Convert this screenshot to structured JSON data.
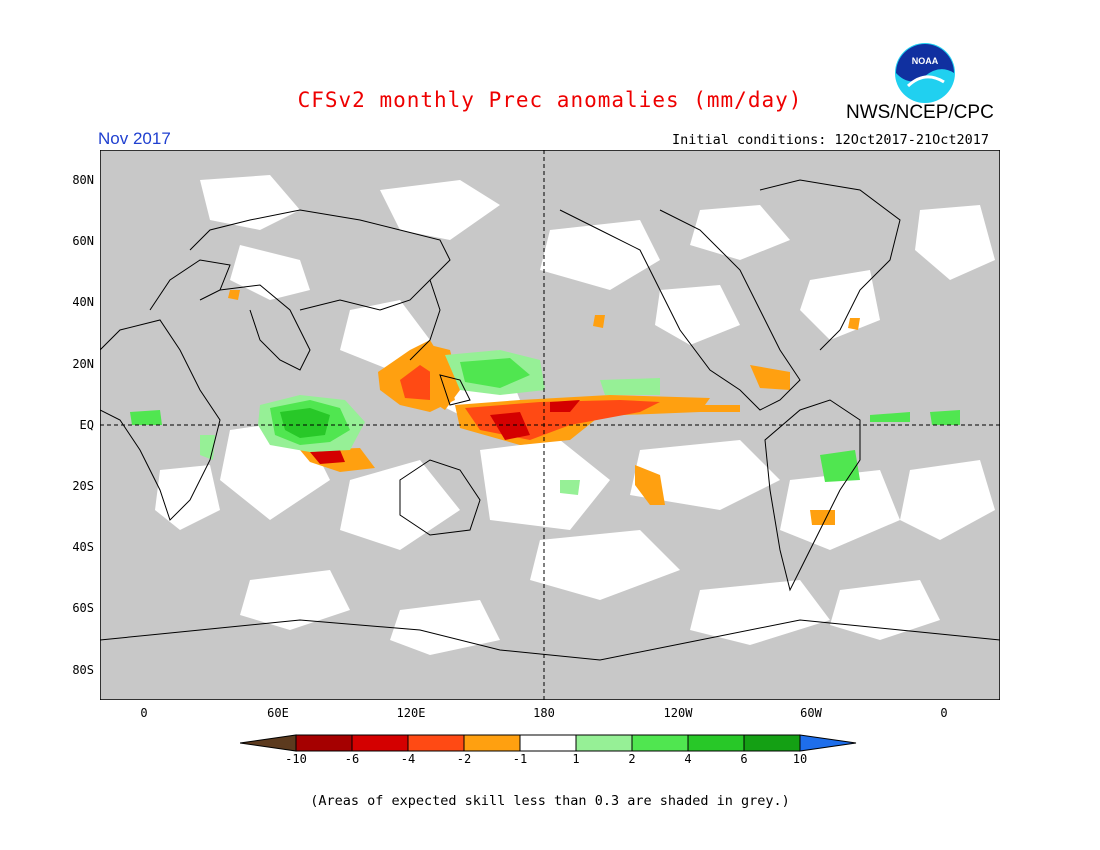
{
  "title": "CFSv2 monthly Prec anomalies (mm/day)",
  "agency": "NWS/NCEP/CPC",
  "logo_text": "NOAA",
  "valid_month": "Nov 2017",
  "initial_conditions": "Initial conditions: 12Oct2017-21Oct2017",
  "lat_labels": [
    "80N",
    "60N",
    "40N",
    "20N",
    "EQ",
    "20S",
    "40S",
    "60S",
    "80S"
  ],
  "lon_labels": [
    "0",
    "60E",
    "120E",
    "180",
    "120W",
    "60W",
    "0"
  ],
  "colorbar": {
    "labels": [
      "-10",
      "-6",
      "-4",
      "-2",
      "-1",
      "1",
      "2",
      "4",
      "6",
      "10"
    ],
    "colors": [
      "#5c3a1e",
      "#a50000",
      "#d40000",
      "#ff4a14",
      "#ffa010",
      "#ffffff",
      "#96f096",
      "#50e650",
      "#28c828",
      "#14a014",
      "#1e6eeb"
    ]
  },
  "footnote": "(Areas of expected skill less than 0.3 are shaded in grey.)",
  "colors": {
    "title": "#ee0000",
    "month": "#2040d0",
    "grey_mask": "#c8c8c8",
    "logo_blue": "#1030a0",
    "logo_cyan": "#20d0f0"
  }
}
